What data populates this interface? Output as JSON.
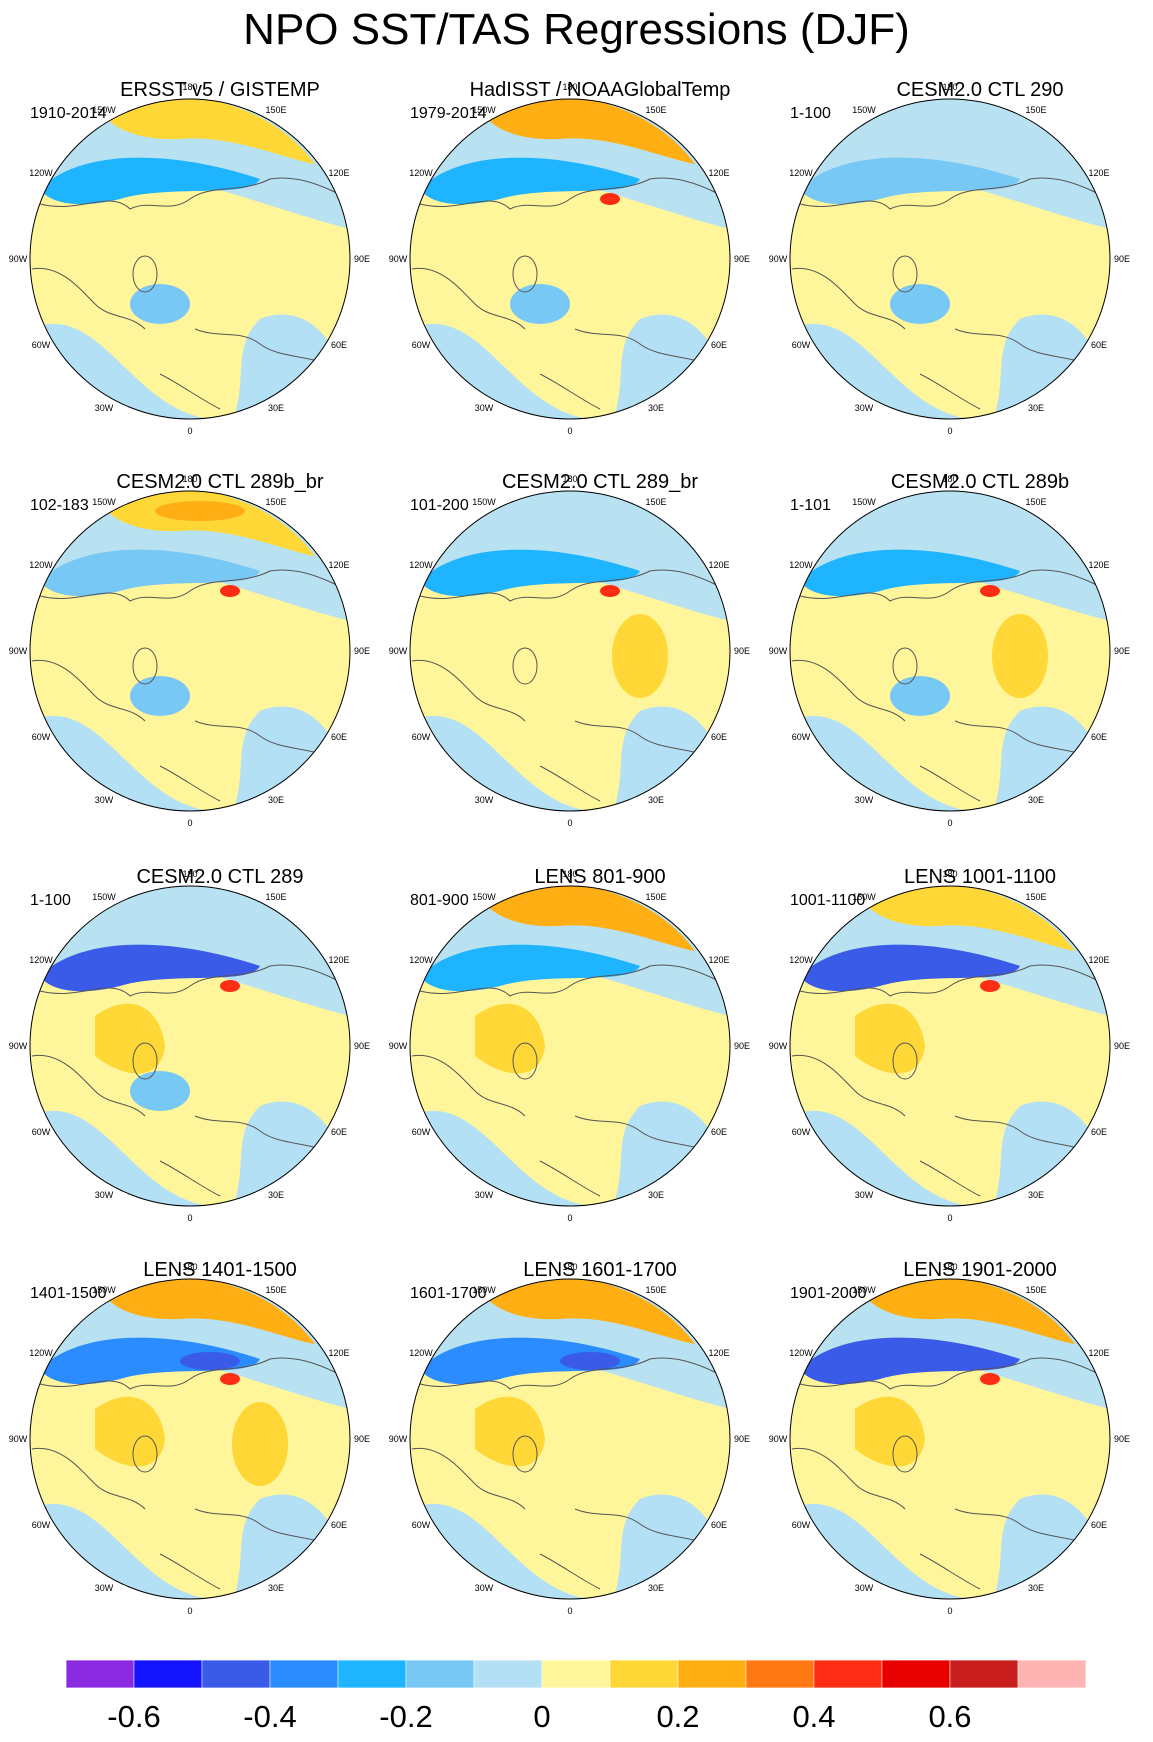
{
  "title": "NPO SST/TAS Regressions (DJF)",
  "panels": [
    {
      "title": "ERSST v5 / GISTEMP",
      "period": "1910-2014"
    },
    {
      "title": "HadISST / NOAAGlobalTemp",
      "period": "1979-2014"
    },
    {
      "title": "CESM2.0 CTL 290",
      "period": "1-100"
    },
    {
      "title": "CESM2.0 CTL 289b_br",
      "period": "102-183"
    },
    {
      "title": "CESM2.0 CTL 289_br",
      "period": "101-200"
    },
    {
      "title": "CESM2.0 CTL 289b",
      "period": "1-101"
    },
    {
      "title": "CESM2.0 CTL 289",
      "period": "1-100"
    },
    {
      "title": "LENS 801-900",
      "period": "801-900"
    },
    {
      "title": "LENS 1001-1100",
      "period": "1001-1100"
    },
    {
      "title": "LENS 1401-1500",
      "period": "1401-1500"
    },
    {
      "title": "LENS 1601-1700",
      "period": "1601-1700"
    },
    {
      "title": "LENS 1901-2000",
      "period": "1901-2000"
    }
  ],
  "longitude_labels": [
    "180",
    "150E",
    "120E",
    "90E",
    "60E",
    "30E",
    "0",
    "30W",
    "60W",
    "90W",
    "120W",
    "150W"
  ],
  "colorbar": {
    "colors": [
      "#8a2be2",
      "#1414ff",
      "#3a5ae8",
      "#2a8cff",
      "#1eb4ff",
      "#78c8f5",
      "#b4e0f5",
      "#fff59a",
      "#ffd837",
      "#ffaf14",
      "#ff7814",
      "#ff2d14",
      "#e60000",
      "#c81e1e",
      "#ffb4b4"
    ],
    "tick_values": [
      "-0.6",
      "-0.4",
      "-0.2",
      "0",
      "0.2",
      "0.4",
      "0.6"
    ]
  },
  "chart_data": {
    "type": "polar-map-panels",
    "projection": "north polar stereographic",
    "variable": "SST/TAS regression on NPO index (DJF)",
    "levels": [
      -0.7,
      -0.6,
      -0.5,
      -0.4,
      -0.3,
      -0.2,
      -0.1,
      0,
      0.1,
      0.2,
      0.3,
      0.4,
      0.5,
      0.6,
      0.7
    ],
    "colorbar_ticks": [
      -0.6,
      -0.4,
      -0.2,
      0,
      0.2,
      0.4,
      0.6
    ],
    "panel_count": 12,
    "layout": "4 rows x 3 columns"
  }
}
